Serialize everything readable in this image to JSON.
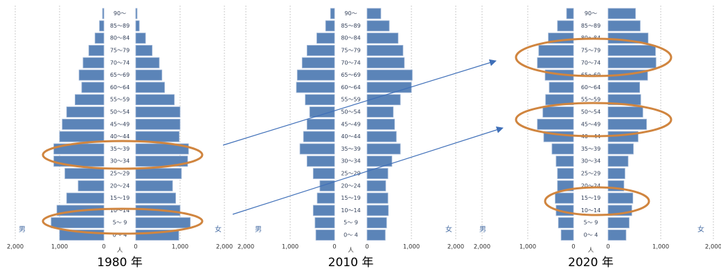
{
  "chart_data": [
    {
      "type": "population_pyramid",
      "title": "1980 年",
      "x_label": "人",
      "categories": [
        "0～ 4",
        "5～ 9",
        "10～14",
        "15～19",
        "20～24",
        "25～29",
        "30～34",
        "35～39",
        "40～44",
        "45～49",
        "50～54",
        "55～59",
        "60～64",
        "65～69",
        "70～74",
        "75～79",
        "80～84",
        "85～89",
        "90～"
      ],
      "series": [
        {
          "name": "男",
          "color": "#5b84b8",
          "values": [
            1000,
            1190,
            1060,
            840,
            580,
            880,
            1130,
            1130,
            1000,
            940,
            840,
            650,
            500,
            560,
            470,
            340,
            200,
            100,
            30
          ]
        },
        {
          "name": "女",
          "color": "#5b84b8",
          "values": [
            970,
            1230,
            1000,
            900,
            830,
            1030,
            1170,
            1190,
            980,
            1000,
            1000,
            870,
            650,
            590,
            530,
            370,
            220,
            80,
            30
          ]
        }
      ],
      "xlim": [
        0,
        2000
      ],
      "xticks": [
        0,
        {
          "value": 1000,
          "label": "1,000"
        },
        {
          "value": 2000,
          "label": "2,000"
        }
      ],
      "grid": true
    },
    {
      "type": "population_pyramid",
      "title": "2010 年",
      "x_label": "人",
      "categories": [
        "0～ 4",
        "5～ 9",
        "10～14",
        "15～19",
        "20～24",
        "25～29",
        "30～34",
        "35～39",
        "40～44",
        "45～49",
        "50～54",
        "55～59",
        "60～64",
        "65～69",
        "70～74",
        "75～79",
        "80～84",
        "85～89",
        "90～"
      ],
      "series": [
        {
          "name": "男",
          "color": "#5b84b8",
          "values": [
            420,
            440,
            480,
            390,
            330,
            480,
            620,
            780,
            700,
            620,
            560,
            660,
            860,
            840,
            730,
            620,
            400,
            200,
            90
          ]
        },
        {
          "name": "女",
          "color": "#5b84b8",
          "values": [
            410,
            440,
            480,
            470,
            420,
            470,
            560,
            750,
            660,
            620,
            590,
            750,
            1000,
            1020,
            840,
            810,
            700,
            500,
            310
          ]
        }
      ],
      "xlim": [
        0,
        2000
      ],
      "xticks": [
        0,
        {
          "value": 1000,
          "label": "1,000"
        },
        {
          "value": 2000,
          "label": "2,000"
        }
      ],
      "grid": true
    },
    {
      "type": "population_pyramid",
      "title": "2020 年",
      "x_label": "人",
      "categories": [
        "0～ 4",
        "5～ 9",
        "10～14",
        "15～19",
        "20～24",
        "25～29",
        "30～34",
        "35～39",
        "40～44",
        "45～49",
        "50～54",
        "55～59",
        "60～64",
        "65～69",
        "70～74",
        "75～79",
        "80～84",
        "85～89",
        "90～"
      ],
      "series": [
        {
          "name": "男",
          "color": "#5b84b8",
          "values": [
            270,
            330,
            380,
            400,
            350,
            350,
            380,
            470,
            650,
            790,
            670,
            610,
            530,
            620,
            790,
            760,
            550,
            350,
            150
          ]
        },
        {
          "name": "女",
          "color": "#5b84b8",
          "values": [
            340,
            400,
            450,
            470,
            300,
            320,
            380,
            480,
            570,
            730,
            660,
            620,
            600,
            750,
            910,
            900,
            760,
            610,
            520
          ]
        }
      ],
      "xlim": [
        0,
        2000
      ],
      "xticks": [
        0,
        {
          "value": 1000,
          "label": "1,000"
        },
        {
          "value": 2000,
          "label": "2,000"
        }
      ],
      "grid": true
    }
  ]
}
